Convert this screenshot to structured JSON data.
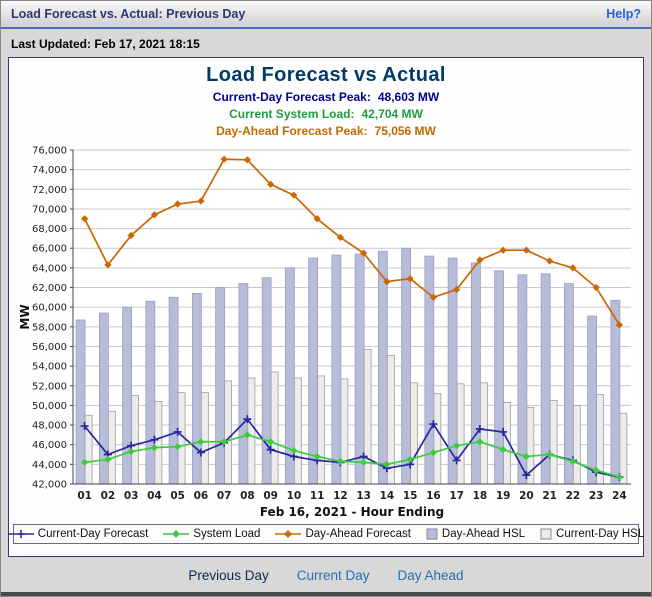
{
  "window": {
    "title": "Load Forecast vs. Actual: Previous Day",
    "help_label": "Help?"
  },
  "last_updated": "Last Updated: Feb 17, 2021 18:15",
  "chart_header": {
    "title": "Load Forecast vs Actual",
    "stats": [
      {
        "label": "Current-Day Forecast Peak:",
        "value": "48,603 MW",
        "color": "#00008f"
      },
      {
        "label": "Current System Load:",
        "value": "42,704 MW",
        "color": "#1f9e3f"
      },
      {
        "label": "Day-Ahead Forecast Peak:",
        "value": "75,056 MW",
        "color": "#c26a00"
      }
    ]
  },
  "chart_data": {
    "type": "bar+line",
    "title": "Load Forecast vs Actual",
    "xlabel": "Feb 16, 2021 - Hour Ending",
    "ylabel": "MW",
    "ylim": [
      42000,
      76000
    ],
    "ytick_step": 2000,
    "grid": true,
    "legend_position": "bottom",
    "categories": [
      "01",
      "02",
      "03",
      "04",
      "05",
      "06",
      "07",
      "08",
      "09",
      "10",
      "11",
      "12",
      "13",
      "14",
      "15",
      "16",
      "17",
      "18",
      "19",
      "20",
      "21",
      "22",
      "23",
      "24"
    ],
    "bar_series": [
      {
        "name": "Day-Ahead HSL",
        "color": "#b7bcd8",
        "border": "#989fc2",
        "values": [
          58700,
          59400,
          60000,
          60600,
          61000,
          61400,
          62000,
          62400,
          63000,
          64000,
          65000,
          65300,
          65400,
          65700,
          66000,
          65200,
          65000,
          64500,
          63700,
          63300,
          63400,
          62400,
          59100,
          60700
        ]
      },
      {
        "name": "Current-Day HSL",
        "color": "#ececec",
        "border": "#9e9e9e",
        "values": [
          49000,
          49400,
          51000,
          50400,
          51300,
          51300,
          52500,
          52800,
          53400,
          52800,
          53000,
          52700,
          55700,
          55100,
          52300,
          51200,
          52200,
          52300,
          50300,
          49800,
          50500,
          50000,
          51100,
          49200
        ]
      }
    ],
    "line_series": [
      {
        "name": "Current-Day Forecast",
        "color": "#28289e",
        "marker": "plus",
        "values": [
          47900,
          45000,
          45900,
          46500,
          47300,
          45200,
          46200,
          48603,
          45500,
          44800,
          44400,
          44200,
          44800,
          43600,
          44000,
          48100,
          44400,
          47600,
          47300,
          42900,
          45000,
          44400,
          43200,
          42700
        ]
      },
      {
        "name": "System Load",
        "color": "#3ecc3e",
        "marker": "diamond",
        "values": [
          44200,
          44500,
          45300,
          45700,
          45800,
          46300,
          46300,
          47000,
          46300,
          45400,
          44800,
          44300,
          44200,
          44000,
          44500,
          45200,
          45900,
          46300,
          45500,
          44800,
          45000,
          44300,
          43400,
          42704
        ]
      },
      {
        "name": "Day-Ahead Forecast",
        "color": "#cc6600",
        "marker": "diamond",
        "values": [
          69000,
          64300,
          67300,
          69400,
          70500,
          70800,
          75056,
          75000,
          72500,
          71400,
          69000,
          67100,
          65500,
          62600,
          62900,
          61000,
          61800,
          64800,
          65800,
          65800,
          64700,
          64000,
          62000,
          58200
        ]
      }
    ]
  },
  "footer_nav": [
    {
      "label": "Previous Day",
      "active": true,
      "color": "#072a4e"
    },
    {
      "label": "Current Day",
      "active": false,
      "color": "#2e6db4"
    },
    {
      "label": "Day Ahead",
      "active": false,
      "color": "#2e6db4"
    }
  ]
}
